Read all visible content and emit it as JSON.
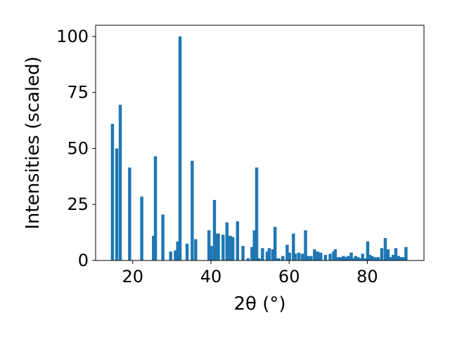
{
  "chart_data": {
    "type": "bar",
    "title": "",
    "xlabel": "2θ (°)",
    "ylabel": "Intensities (scaled)",
    "xlim": [
      10.5,
      94.5
    ],
    "ylim": [
      0,
      105
    ],
    "x_ticks": [
      20,
      40,
      60,
      80
    ],
    "y_ticks": [
      0,
      25,
      50,
      75,
      100
    ],
    "bar_color": "#1f77b4",
    "grid": false,
    "bar_width": 0.8,
    "series": [
      {
        "x": [
          14.8,
          15.9,
          16.8,
          19.2,
          22.3,
          25.3,
          25.8,
          27.7,
          29.7,
          30.9,
          31.5,
          32.1,
          33.9,
          35.2,
          36.1,
          39.5,
          40.1,
          40.9,
          41.4,
          41.9,
          43.1,
          44.1,
          44.9,
          45.6,
          46.8,
          48.2,
          49.5,
          50.5,
          51.1,
          51.7,
          52.3,
          53.2,
          54.4,
          54.9,
          55.8,
          56.4,
          56.8,
          57.4,
          58.4,
          59.5,
          60.1,
          61.1,
          61.6,
          62.5,
          63.4,
          64.2,
          64.8,
          65.6,
          66.5,
          67.3,
          68.1,
          69.3,
          70.5,
          71.4,
          71.8,
          72.6,
          73.4,
          73.9,
          74.4,
          75.1,
          75.9,
          76.4,
          77.0,
          77.6,
          78.3,
          78.8,
          79.5,
          80.1,
          80.6,
          81.2,
          82.0,
          82.8,
          83.7,
          84.6,
          85.3,
          85.8,
          86.6,
          87.3,
          88.0,
          88.6,
          89.2,
          89.9
        ],
        "values": [
          61,
          50,
          69.5,
          41.5,
          28.5,
          11,
          46.5,
          20.5,
          4,
          4.5,
          8.5,
          100,
          7.5,
          44.5,
          9.5,
          13.5,
          6.5,
          27,
          12,
          12,
          11.5,
          17,
          11,
          10.5,
          17.5,
          6.5,
          1,
          6,
          13.5,
          41.5,
          1,
          5.5,
          4,
          5.5,
          5,
          15,
          1,
          1,
          2,
          7,
          3.5,
          12,
          3,
          3.5,
          3,
          13.5,
          2,
          2,
          5,
          4,
          3.5,
          2.5,
          3,
          4,
          5,
          1.5,
          1.5,
          2,
          1.5,
          2,
          3.5,
          1,
          2,
          1.5,
          1,
          3,
          1,
          8.5,
          2.5,
          2,
          1.5,
          1.5,
          5.5,
          10,
          5,
          1.5,
          2.5,
          5.5,
          2,
          1.5,
          1.5,
          6
        ]
      }
    ]
  }
}
